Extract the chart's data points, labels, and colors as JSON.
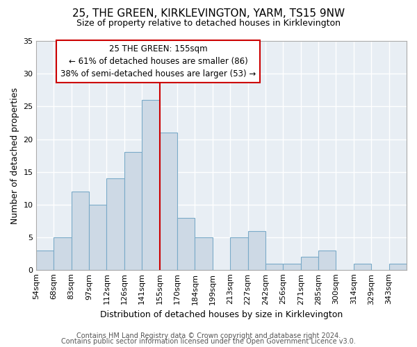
{
  "title": "25, THE GREEN, KIRKLEVINGTON, YARM, TS15 9NW",
  "subtitle": "Size of property relative to detached houses in Kirklevington",
  "xlabel": "Distribution of detached houses by size in Kirklevington",
  "ylabel": "Number of detached properties",
  "bin_labels": [
    "54sqm",
    "68sqm",
    "83sqm",
    "97sqm",
    "112sqm",
    "126sqm",
    "141sqm",
    "155sqm",
    "170sqm",
    "184sqm",
    "199sqm",
    "213sqm",
    "227sqm",
    "242sqm",
    "256sqm",
    "271sqm",
    "285sqm",
    "300sqm",
    "314sqm",
    "329sqm",
    "343sqm"
  ],
  "bar_heights": [
    3,
    5,
    12,
    10,
    14,
    18,
    26,
    21,
    8,
    5,
    0,
    5,
    6,
    1,
    1,
    2,
    3,
    0,
    1,
    0,
    1
  ],
  "bar_color": "#cdd9e5",
  "bar_edge_color": "#7aaac8",
  "vline_x_index": 7,
  "vline_color": "#cc0000",
  "ylim": [
    0,
    35
  ],
  "yticks": [
    0,
    5,
    10,
    15,
    20,
    25,
    30,
    35
  ],
  "annotation_text": "25 THE GREEN: 155sqm\n← 61% of detached houses are smaller (86)\n38% of semi-detached houses are larger (53) →",
  "annotation_box_color": "#ffffff",
  "annotation_box_edge_color": "#cc0000",
  "footer_line1": "Contains HM Land Registry data © Crown copyright and database right 2024.",
  "footer_line2": "Contains public sector information licensed under the Open Government Licence v3.0.",
  "background_color": "#ffffff",
  "plot_bg_color": "#e8eef4",
  "grid_color": "#ffffff",
  "title_fontsize": 11,
  "subtitle_fontsize": 9,
  "axis_label_fontsize": 9,
  "tick_fontsize": 8,
  "annotation_fontsize": 8.5,
  "footer_fontsize": 7
}
